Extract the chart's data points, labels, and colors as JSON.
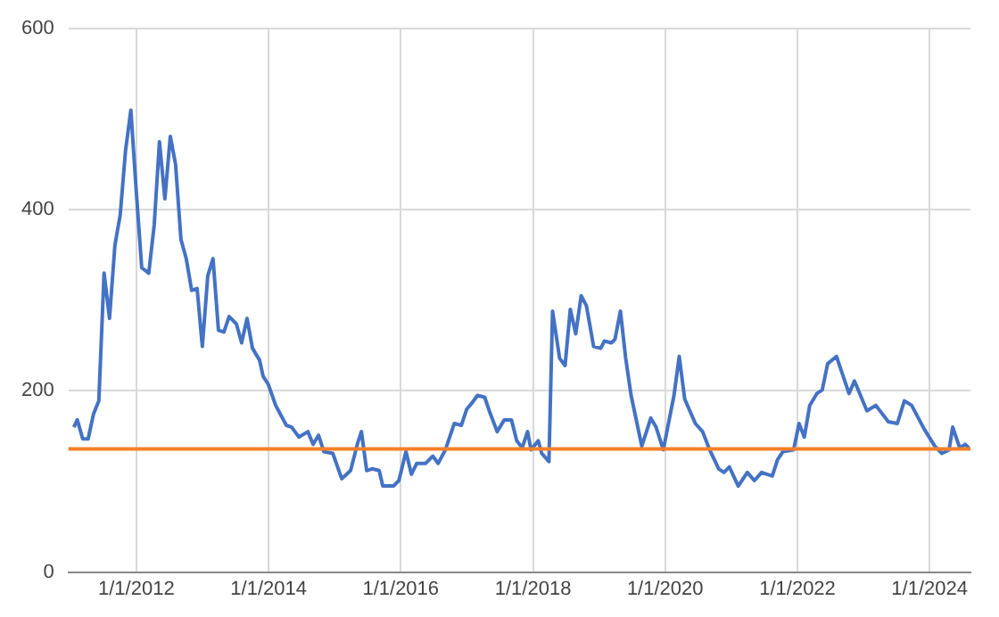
{
  "chart_data": {
    "type": "line",
    "x": [
      "2011-01-21",
      "2011-02-09",
      "2011-03-11",
      "2011-04-10",
      "2011-05-09",
      "2011-06-08",
      "2011-07-07",
      "2011-08-06",
      "2011-09-05",
      "2011-10-04",
      "2011-11-03",
      "2011-12-02",
      "2012-01-01",
      "2012-01-31",
      "2012-03-10",
      "2012-04-09",
      "2012-05-08",
      "2012-06-07",
      "2012-07-07",
      "2012-08-05",
      "2012-09-04",
      "2012-10-03",
      "2012-11-02",
      "2012-12-02",
      "2012-12-31",
      "2013-01-30",
      "2013-02-28",
      "2013-03-30",
      "2013-04-29",
      "2013-05-28",
      "2013-07-07",
      "2013-08-05",
      "2013-09-04",
      "2013-10-04",
      "2013-11-12",
      "2013-12-02",
      "2013-12-31",
      "2014-02-09",
      "2014-04-09",
      "2014-05-09",
      "2014-06-17",
      "2014-08-06",
      "2014-09-04",
      "2014-10-04",
      "2014-11-02",
      "2014-12-22",
      "2015-02-09",
      "2015-03-30",
      "2015-05-09",
      "2015-05-29",
      "2015-06-27",
      "2015-07-27",
      "2015-09-04",
      "2015-09-24",
      "2015-11-22",
      "2015-12-22",
      "2016-01-30",
      "2016-02-29",
      "2016-03-30",
      "2016-05-18",
      "2016-06-26",
      "2016-07-26",
      "2016-09-04",
      "2016-10-23",
      "2016-12-01",
      "2016-12-31",
      "2017-01-30",
      "2017-02-28",
      "2017-04-09",
      "2017-05-08",
      "2017-06-17",
      "2017-07-26",
      "2017-09-04",
      "2017-10-03",
      "2017-11-02",
      "2017-12-02",
      "2017-12-21",
      "2018-01-30",
      "2018-02-18",
      "2018-03-30",
      "2018-04-19",
      "2018-05-28",
      "2018-06-27",
      "2018-07-26",
      "2018-08-25",
      "2018-09-24",
      "2018-10-23",
      "2018-12-02",
      "2019-01-10",
      "2019-01-30",
      "2019-03-10",
      "2019-03-30",
      "2019-04-29",
      "2019-05-28",
      "2019-06-27",
      "2019-08-25",
      "2019-10-14",
      "2019-11-12",
      "2019-12-22",
      "2020-02-19",
      "2020-03-19",
      "2020-04-18",
      "2020-06-16",
      "2020-07-26",
      "2020-09-03",
      "2020-10-23",
      "2020-11-21",
      "2020-12-21",
      "2021-02-08",
      "2021-03-30",
      "2021-05-08",
      "2021-06-17",
      "2021-08-15",
      "2021-09-13",
      "2021-10-13",
      "2021-12-11",
      "2022-01-10",
      "2022-02-08",
      "2022-03-10",
      "2022-04-18",
      "2022-05-18",
      "2022-06-17",
      "2022-08-05",
      "2022-10-13",
      "2022-11-12",
      "2023-01-20",
      "2023-03-10",
      "2023-05-18",
      "2023-07-07",
      "2023-08-15",
      "2023-09-24",
      "2023-12-02",
      "2024-01-30",
      "2024-03-09",
      "2024-04-18",
      "2024-05-08",
      "2024-06-16",
      "2024-07-16",
      "2024-08-05"
    ],
    "series": [
      {
        "color": "#4472c4",
        "values": [
          160,
          168,
          147,
          147,
          174,
          189,
          330,
          280,
          361,
          394,
          466,
          510,
          420,
          336,
          330,
          383,
          475,
          412,
          481,
          450,
          367,
          346,
          311,
          313,
          249,
          327,
          346,
          267,
          265,
          282,
          274,
          253,
          280,
          247,
          234,
          216,
          207,
          184,
          162,
          160,
          149,
          155,
          141,
          151,
          133,
          131,
          103,
          112,
          143,
          155,
          112,
          114,
          112,
          95,
          95,
          101,
          133,
          108,
          120,
          120,
          128,
          120,
          135,
          164,
          162,
          180,
          187,
          195,
          193,
          176,
          155,
          168,
          168,
          145,
          137,
          155,
          135,
          145,
          131,
          122,
          288,
          236,
          228,
          290,
          263,
          305,
          294,
          249,
          247,
          255,
          253,
          257,
          288,
          236,
          195,
          139,
          170,
          160,
          135,
          195,
          238,
          191,
          164,
          155,
          135,
          114,
          110,
          116,
          95,
          110,
          101,
          110,
          106,
          124,
          133,
          135,
          164,
          149,
          184,
          197,
          201,
          230,
          238,
          197,
          211,
          178,
          184,
          166,
          164,
          189,
          184,
          158,
          139,
          131,
          135,
          160,
          137,
          141,
          137
        ]
      }
    ],
    "ref_lines": [
      {
        "axis": "y",
        "value": 136,
        "color": "#f4802a"
      }
    ],
    "xlim": [
      "2010-12-22",
      "2024-08-14"
    ],
    "xticks": [
      {
        "value": "2012-01-01",
        "label": "1/1/2012"
      },
      {
        "value": "2014-01-01",
        "label": "1/1/2014"
      },
      {
        "value": "2016-01-01",
        "label": "1/1/2016"
      },
      {
        "value": "2018-01-01",
        "label": "1/1/2018"
      },
      {
        "value": "2020-01-01",
        "label": "1/1/2020"
      },
      {
        "value": "2022-01-01",
        "label": "1/1/2022"
      },
      {
        "value": "2024-01-01",
        "label": "1/1/2024"
      }
    ],
    "ylim": [
      0,
      600
    ],
    "yticks": [
      0,
      200,
      400,
      600
    ],
    "grid": true,
    "legend": false,
    "marker": "none",
    "line_style": "solid"
  }
}
